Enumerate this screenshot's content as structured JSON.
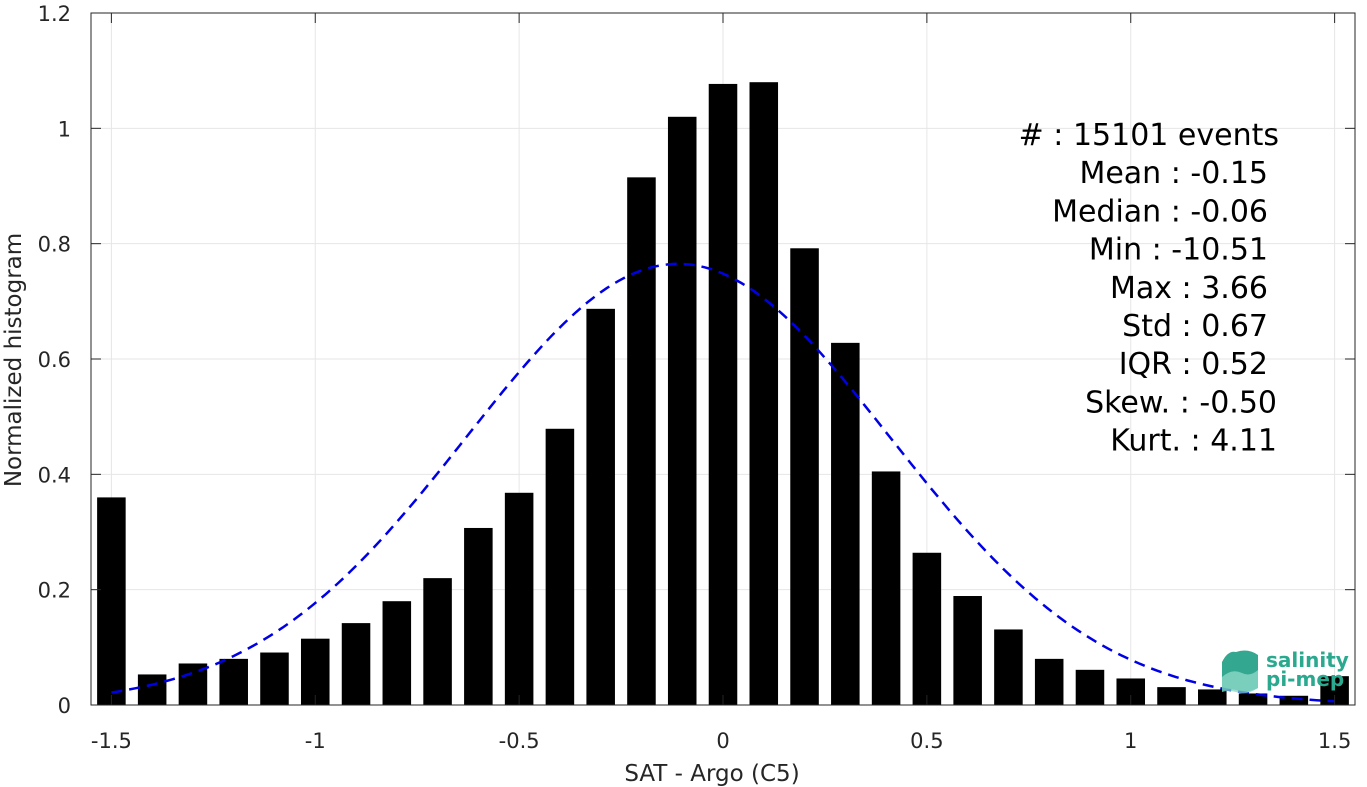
{
  "chart_data": {
    "type": "bar",
    "xlabel": "SAT - Argo (C5)",
    "ylabel": "Normalized histogram",
    "xlim": [
      -1.55,
      1.55
    ],
    "ylim": [
      0,
      1.2
    ],
    "xticks": [
      -1.5,
      -1,
      -0.5,
      0,
      0.5,
      1,
      1.5
    ],
    "xtick_labels": [
      "-1.5",
      "-1",
      "-0.5",
      "0",
      "0.5",
      "1",
      "1.5"
    ],
    "yticks": [
      0,
      0.2,
      0.4,
      0.6,
      0.8,
      1,
      1.2
    ],
    "ytick_labels": [
      "0",
      "0.2",
      "0.4",
      "0.6",
      "0.8",
      "1",
      "1.2"
    ],
    "grid": true,
    "bar_color": "#000000",
    "bin_width": 0.1,
    "bars": {
      "x": [
        -1.5,
        -1.4,
        -1.3,
        -1.2,
        -1.1,
        -1.0,
        -0.9,
        -0.8,
        -0.7,
        -0.6,
        -0.5,
        -0.4,
        -0.3,
        -0.2,
        -0.1,
        0.0,
        0.1,
        0.2,
        0.3,
        0.4,
        0.5,
        0.6,
        0.7,
        0.8,
        0.9,
        1.0,
        1.1,
        1.2,
        1.3,
        1.4,
        1.5
      ],
      "values": [
        0.36,
        0.053,
        0.072,
        0.08,
        0.091,
        0.115,
        0.142,
        0.18,
        0.22,
        0.307,
        0.368,
        0.479,
        0.687,
        0.915,
        1.02,
        1.077,
        1.08,
        0.792,
        0.628,
        0.405,
        0.264,
        0.189,
        0.131,
        0.08,
        0.061,
        0.046,
        0.031,
        0.027,
        0.02,
        0.016,
        0.05
      ]
    },
    "fit_curve": {
      "style": "dashed",
      "color": "#0000e6",
      "mean": -0.11,
      "std": 0.52,
      "peak": 0.765
    },
    "stats_lines": [
      "#  : 15101 events",
      "Mean : -0.15",
      "Median : -0.06",
      "Min : -10.51",
      "Max : 3.66",
      "Std : 0.67",
      "IQR : 0.52",
      "Skew. : -0.50",
      "Kurt. : 4.11"
    ]
  },
  "logo": {
    "line1": "salinity",
    "line2": "pi-mep",
    "color": "#2aa98f"
  }
}
